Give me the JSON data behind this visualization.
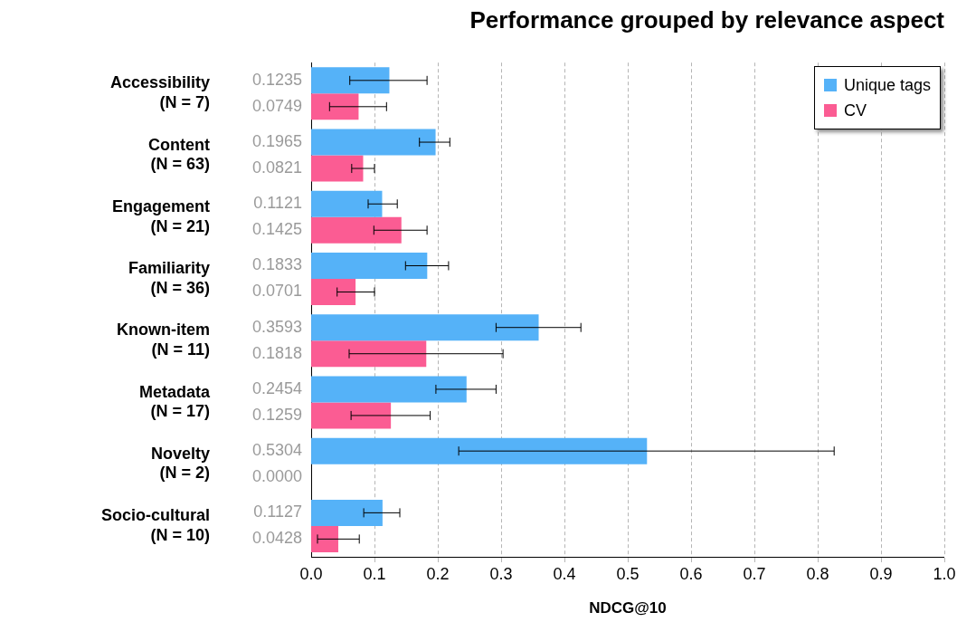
{
  "chart_data": {
    "type": "bar",
    "orientation": "horizontal",
    "title": "Performance grouped by relevance aspect",
    "xlabel": "NDCG@10",
    "categories": [
      "Accessibility\n(N = 7)",
      "Content\n(N = 63)",
      "Engagement\n(N = 21)",
      "Familiarity\n(N = 36)",
      "Known-item\n(N = 11)",
      "Metadata\n(N = 17)",
      "Novelty\n(N = 2)",
      "Socio-cultural\n(N = 10)"
    ],
    "series": [
      {
        "name": "Unique tags",
        "color": "#55b2f8",
        "values": [
          0.1235,
          0.1965,
          0.1121,
          0.1833,
          0.3593,
          0.2454,
          0.5304,
          0.1127
        ],
        "value_labels": [
          "0.1235",
          "0.1965",
          "0.1121",
          "0.1833",
          "0.3593",
          "0.2454",
          "0.5304",
          "0.1127"
        ],
        "errors": [
          [
            0.061,
            0.183
          ],
          [
            0.171,
            0.219
          ],
          [
            0.09,
            0.136
          ],
          [
            0.149,
            0.217
          ],
          [
            0.292,
            0.426
          ],
          [
            0.197,
            0.292
          ],
          [
            0.233,
            0.826
          ],
          [
            0.083,
            0.14
          ]
        ]
      },
      {
        "name": "CV",
        "color": "#fb5c93",
        "values": [
          0.0749,
          0.0821,
          0.1425,
          0.0701,
          0.1818,
          0.1259,
          0,
          0.0428
        ],
        "value_labels": [
          "0.0749",
          "0.0821",
          "0.1425",
          "0.0701",
          "0.1818",
          "0.1259",
          "0.0000",
          "0.0428"
        ],
        "errors": [
          [
            0.029,
            0.119
          ],
          [
            0.064,
            0.1
          ],
          [
            0.099,
            0.183
          ],
          [
            0.041,
            0.1
          ],
          [
            0.06,
            0.303
          ],
          [
            0.063,
            0.188
          ],
          null,
          [
            0.01,
            0.076
          ]
        ]
      }
    ],
    "xlim": [
      0,
      1
    ],
    "xticks": [
      {
        "value": 0,
        "label": "0.0"
      },
      0.1,
      0.2,
      0.3,
      0.4,
      0.5,
      0.6,
      0.7,
      0.8,
      0.9,
      {
        "value": 1,
        "label": "1.0"
      }
    ],
    "grid": "x",
    "legend": "top right"
  }
}
